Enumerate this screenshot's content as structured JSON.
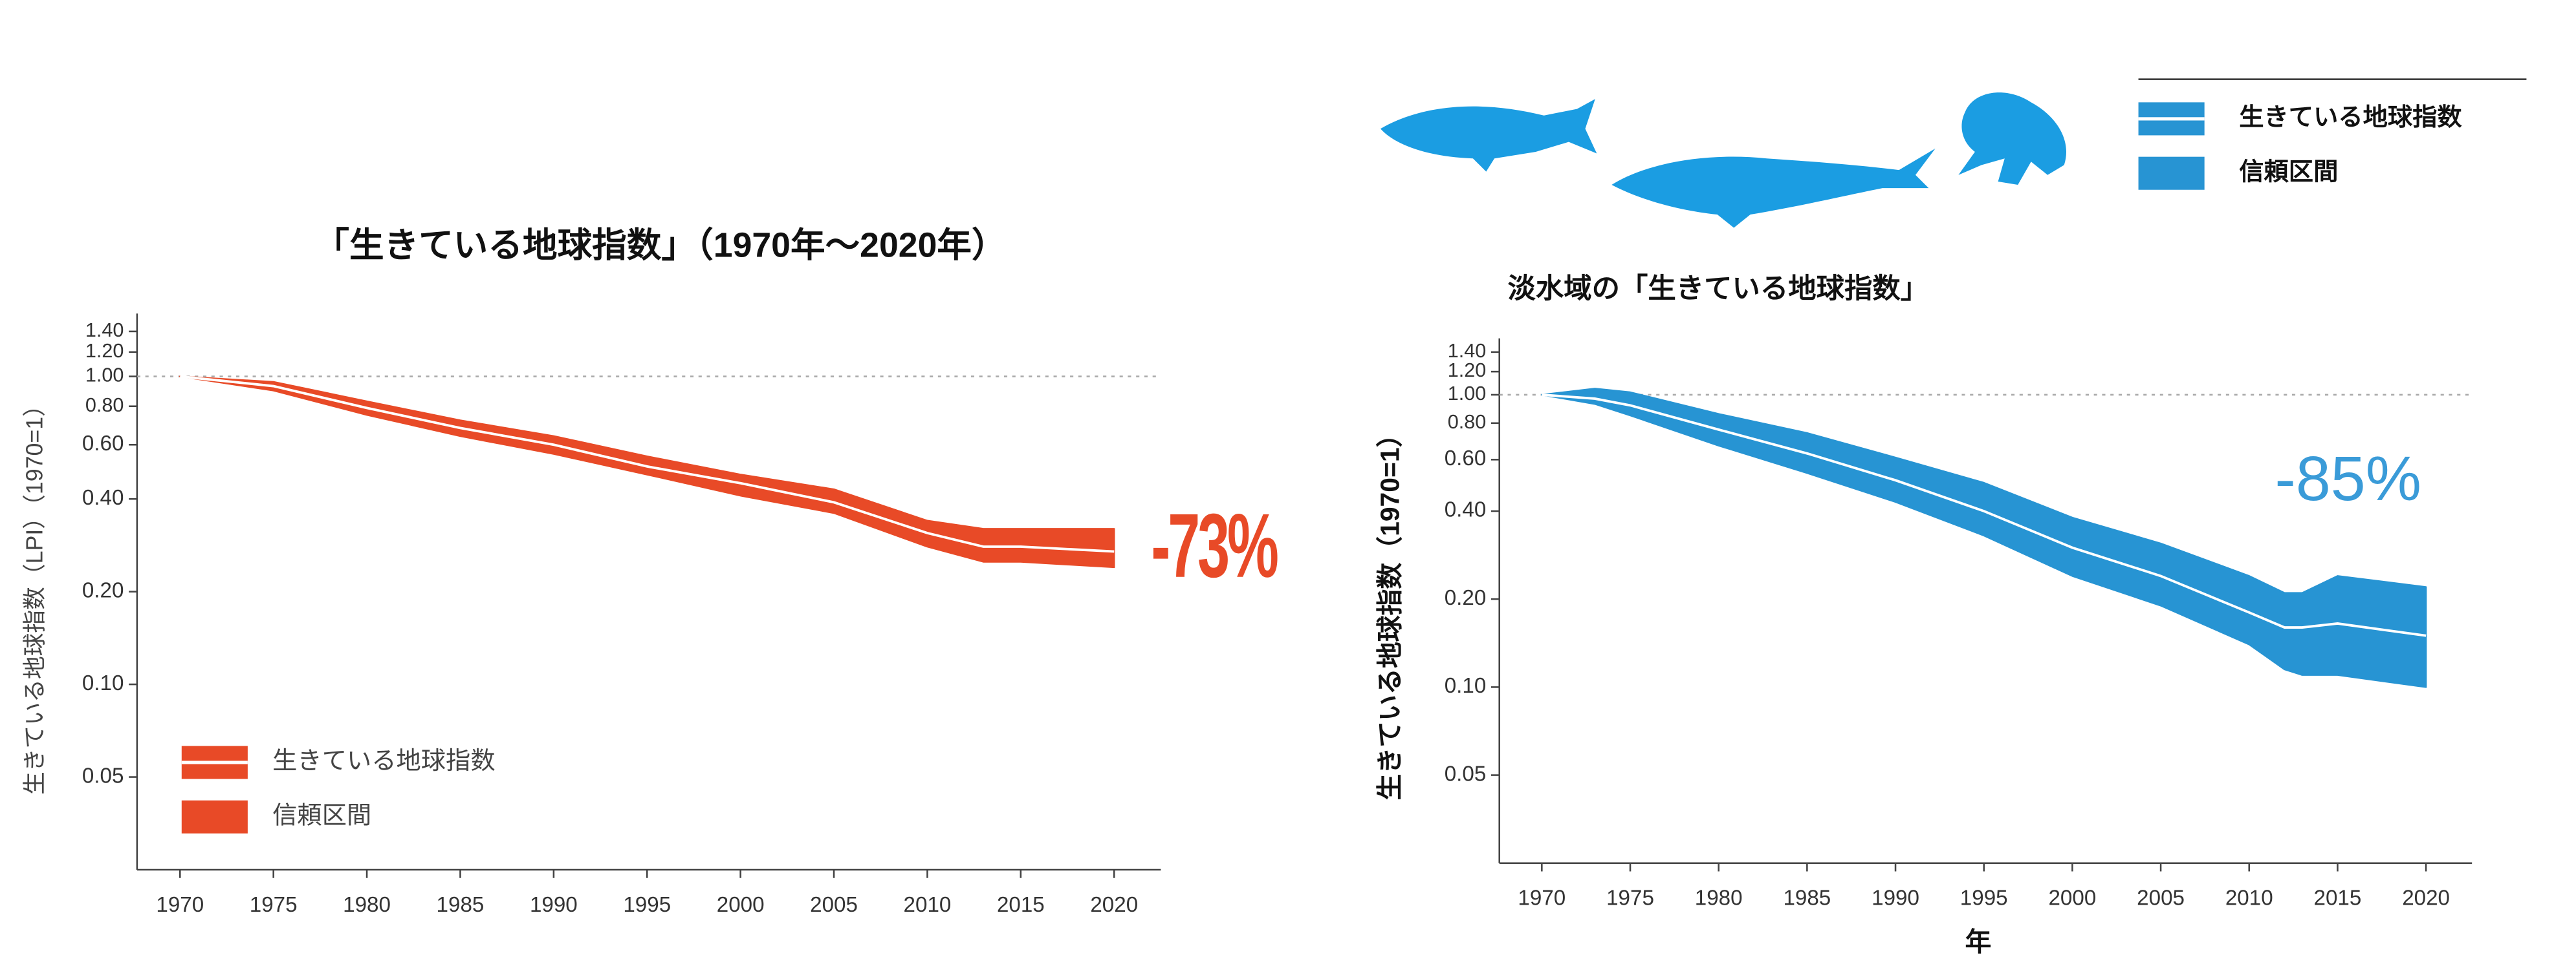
{
  "chart_data": [
    {
      "type": "band-line",
      "title": "「生きている地球指数」（1970年～2020年）",
      "ylabel": "生きている地球指数（LPI）（1970=1）",
      "annotation": "-73%",
      "x": [
        1970,
        1975,
        1980,
        1985,
        1990,
        1995,
        2000,
        2005,
        2010,
        2013,
        2015,
        2020
      ],
      "series": [
        {
          "name": "生きている地球指数",
          "color": "#ffffff",
          "values": [
            1,
            0.93,
            0.79,
            0.68,
            0.6,
            0.51,
            0.45,
            0.39,
            0.31,
            0.28,
            0.28,
            0.27
          ]
        },
        {
          "name": "信頼区間",
          "color": "#e84a27",
          "lower": [
            1,
            0.9,
            0.75,
            0.64,
            0.56,
            0.48,
            0.41,
            0.36,
            0.28,
            0.25,
            0.25,
            0.24
          ],
          "upper": [
            1,
            0.96,
            0.83,
            0.72,
            0.64,
            0.55,
            0.48,
            0.43,
            0.34,
            0.32,
            0.32,
            0.32
          ]
        }
      ],
      "xlim": [
        1967.7,
        2022.5
      ],
      "xticks": [
        1970,
        1975,
        1980,
        1985,
        1990,
        1995,
        2000,
        2005,
        2010,
        2015,
        2020
      ],
      "ylim": [
        0.025,
        1.6
      ],
      "log_scale": true,
      "yticks": [
        {
          "value": 0.05,
          "label": "0.05"
        },
        {
          "value": 0.1,
          "label": "0.10"
        },
        {
          "value": 0.2,
          "label": "0.20"
        },
        {
          "value": 0.4,
          "label": "0.40"
        },
        {
          "value": 0.6,
          "label": "0.60"
        },
        {
          "value": 0.8,
          "label": "0.80"
        },
        {
          "value": 1,
          "label": "1.00"
        },
        {
          "value": 1.2,
          "label": "1.20"
        },
        {
          "value": 1.4,
          "label": "1.40"
        }
      ],
      "legend": "lower left"
    },
    {
      "type": "band-line",
      "title": "淡水域の「生きている地球指数」",
      "ylabel": "生きている地球指数（1970=1）",
      "xlabel": "年",
      "annotation": "-85%",
      "x": [
        1970,
        1973,
        1975,
        1980,
        1985,
        1990,
        1995,
        2000,
        2005,
        2010,
        2012,
        2013,
        2015,
        2020
      ],
      "series": [
        {
          "name": "生きている地球指数",
          "color": "#ffffff",
          "values": [
            1,
            0.97,
            0.92,
            0.76,
            0.63,
            0.51,
            0.4,
            0.3,
            0.24,
            0.18,
            0.16,
            0.16,
            0.165,
            0.15
          ]
        },
        {
          "name": "信頼区間",
          "color": "#2794d3",
          "lower": [
            1,
            0.93,
            0.85,
            0.67,
            0.54,
            0.43,
            0.33,
            0.24,
            0.19,
            0.14,
            0.115,
            0.11,
            0.11,
            0.1
          ],
          "upper": [
            1,
            1.05,
            1.02,
            0.86,
            0.74,
            0.61,
            0.5,
            0.38,
            0.31,
            0.24,
            0.21,
            0.21,
            0.24,
            0.22
          ]
        }
      ],
      "xlim": [
        1967.6,
        2022.6
      ],
      "xticks": [
        1970,
        1975,
        1980,
        1985,
        1990,
        1995,
        2000,
        2005,
        2010,
        2015,
        2020
      ],
      "ylim": [
        0.025,
        1.56
      ],
      "log_scale": true,
      "yticks": [
        {
          "value": 0.05,
          "label": "0.05"
        },
        {
          "value": 0.1,
          "label": "0.10"
        },
        {
          "value": 0.2,
          "label": "0.20"
        },
        {
          "value": 0.4,
          "label": "0.40"
        },
        {
          "value": 0.6,
          "label": "0.60"
        },
        {
          "value": 0.8,
          "label": "0.80"
        },
        {
          "value": 1,
          "label": "1.00"
        },
        {
          "value": 1.2,
          "label": "1.20"
        },
        {
          "value": 1.4,
          "label": "1.40"
        }
      ],
      "legend": "upper right"
    }
  ]
}
